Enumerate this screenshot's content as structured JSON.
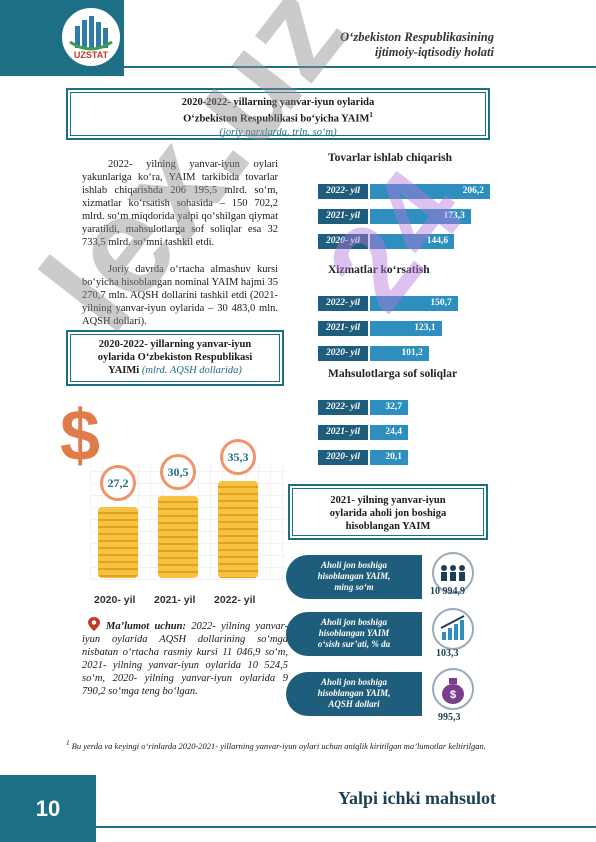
{
  "header": {
    "logo_text": "UZSTAT",
    "line1": "O‘zbekiston Respublikasining",
    "line2": "ijtimoiy-iqtisodiy holati"
  },
  "title_box": {
    "line1": "2020-2022- yillarning yanvar-iyun oylarida",
    "line2": "O‘zbekiston Respublikasi bo‘yicha YAIM",
    "sup": "1",
    "subtitle": "(joriy narxlarda, trln. so‘m)"
  },
  "paragraph1": "2022- yilning yanvar-iyun oylari yakunlariga ko‘ra, YAIM tarkibida tovarlar ishlab chiqarishda 206 195,5 mlrd. so‘m, xizmatlar ko‘rsatish sohasida – 150 702,2 mlrd. so‘m miqdorida yalpi qo‘shilgan qiymat yaratildi, mahsulotlarga sof soliqlar esa 32 733,5 mlrd. so‘mni tashkil etdi.",
  "paragraph2": "Joriy davrda o‘rtacha almashuv kursi bo‘yicha hisoblangan nominal YAIM hajmi 35 270,7 mln. AQSH dollarini tashkil etdi (2021- yilning yanvar-iyun oylarida – 30 483,0 mln. AQSH dollari).",
  "usd_box": {
    "line1": "2020-2022- yillarning yanvar-iyun",
    "line2": "oylarida O‘zbekiston Respublikasi",
    "line3": "YAIMi",
    "subtitle": "(mlrd. AQSH dollarida)"
  },
  "coin_chart": {
    "years": [
      "2020- yil",
      "2021- yil",
      "2022- yil"
    ],
    "values": [
      "27,2",
      "30,5",
      "35,3"
    ]
  },
  "chart_data": [
    {
      "type": "bar",
      "title": "Tovarlar ishlab chiqarish",
      "categories": [
        "2022- yil",
        "2021- yil",
        "2020- yil"
      ],
      "values": [
        206.2,
        173.3,
        144.6
      ],
      "labels": [
        "206,2",
        "173,3",
        "144,6"
      ]
    },
    {
      "type": "bar",
      "title": "Xizmatlar ko‘rsatish",
      "categories": [
        "2022- yil",
        "2021- yil",
        "2020- yil"
      ],
      "values": [
        150.7,
        123.1,
        101.2
      ],
      "labels": [
        "150,7",
        "123,1",
        "101,2"
      ]
    },
    {
      "type": "bar",
      "title": "Mahsulotlarga sof soliqlar",
      "categories": [
        "2022- yil",
        "2021- yil",
        "2020- yil"
      ],
      "values": [
        32.7,
        24.4,
        20.1
      ],
      "labels": [
        "32,7",
        "24,4",
        "20,1"
      ]
    },
    {
      "type": "bar",
      "title": "",
      "categories": [
        "2020- yil",
        "2021- yil",
        "2022- yil"
      ],
      "values": [
        27.2,
        30.5,
        35.3
      ],
      "labels": [
        "27,2",
        "30,5",
        "35,3"
      ]
    }
  ],
  "per_capita_box": {
    "line1": "2021- yilning yanvar-iyun",
    "line2": "oylarida aholi jon boshiga",
    "line3": "hisoblangan YAIM"
  },
  "pills": [
    {
      "line1": "Aholi jon boshiga",
      "line2": "hisoblangan YAIM,",
      "line3": "ming so‘m",
      "value": "10 994,9",
      "icon": "people-icon"
    },
    {
      "line1": "Aholi jon boshiga",
      "line2": "hisoblangan YAIM",
      "line3": "o‘sish sur’ati, % da",
      "value": "103,3",
      "icon": "growth-chart-icon"
    },
    {
      "line1": "Aholi jon boshiga",
      "line2": "hisoblangan YAIM,",
      "line3": "AQSH dollari",
      "value": "995,3",
      "icon": "money-bag-icon"
    }
  ],
  "info": {
    "label": "Ma’lumot uchun:",
    "text": "2022- yilning yanvar-iyun oylarida AQSH dollarining so‘mga nisbatan o‘rtacha rasmiy kursi 11 046,9 so‘m, 2021- yilning yanvar-iyun oylarida 10 524,5 so‘m, 2020- yilning yanvar-iyun oylarida 9 790,2 so‘mga teng bo‘lgan."
  },
  "footnote": {
    "sup": "1",
    "text": "Bu yerda va keyingi o‘rinlarda 2020-2021- yillarning yanvar-iyun oylari uchun aniqlik kiritilgan ma’lumotlar keltirilgan."
  },
  "watermark": {
    "main": "lex.uz",
    "number": "24"
  },
  "footer": {
    "page_number": "10",
    "title": "Yalpi ichki mahsulot"
  },
  "colors": {
    "primary": "#1d6f86",
    "bar_label": "#1f5d7c",
    "bar_fill": "#2e8fbf",
    "coin": "#f7c244"
  }
}
